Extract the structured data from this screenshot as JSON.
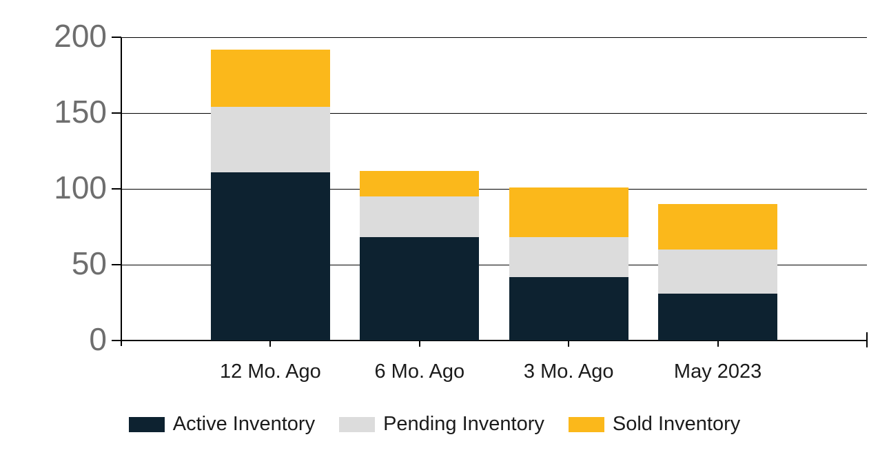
{
  "chart_data": {
    "type": "bar",
    "stacked": true,
    "title": "",
    "xlabel": "",
    "ylabel": "",
    "categories": [
      "12 Mo. Ago",
      "6 Mo. Ago",
      "3 Mo. Ago",
      "May 2023"
    ],
    "series": [
      {
        "name": "Active Inventory",
        "color": "#0d2230",
        "values": [
          111,
          68,
          42,
          31
        ]
      },
      {
        "name": "Pending Inventory",
        "color": "#dcdcdc",
        "values": [
          43,
          27,
          26,
          29
        ]
      },
      {
        "name": "Sold Inventory",
        "color": "#fbb81b",
        "values": [
          38,
          17,
          33,
          30
        ]
      }
    ],
    "stack_totals": [
      192,
      112,
      101,
      90
    ],
    "ylim": [
      0,
      200
    ],
    "yticks": [
      0,
      50,
      100,
      150,
      200
    ],
    "grid": "horizontal",
    "legend_position": "bottom"
  },
  "colors": {
    "background": "#ffffff",
    "axis_line": "#000000",
    "gridline": "#000000",
    "y_tick_label": "#6e6e6e",
    "x_tick_label": "#1b1b1b",
    "legend_text": "#1b1b1b"
  }
}
